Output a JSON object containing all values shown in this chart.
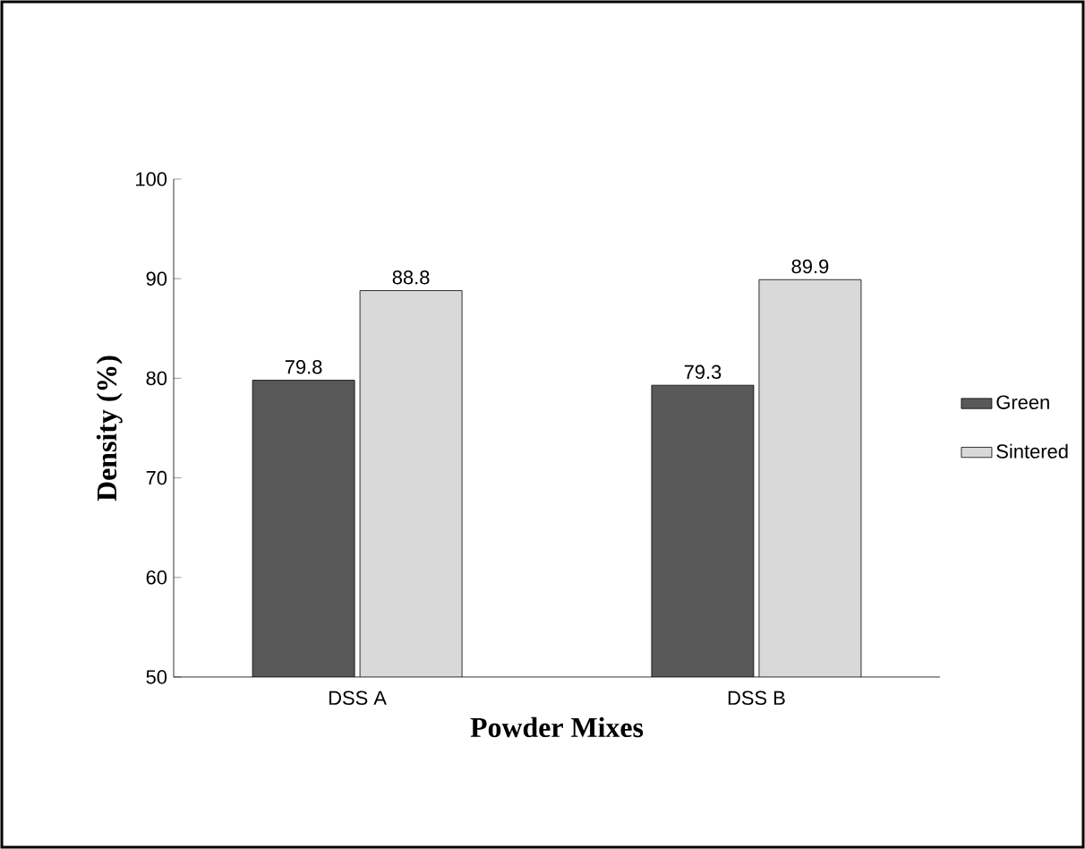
{
  "chart_data": {
    "type": "bar",
    "xlabel": "Powder Mixes",
    "ylabel": "Density (%)",
    "categories": [
      "DSS A",
      "DSS B"
    ],
    "series": [
      {
        "name": "Green",
        "color": "#595959",
        "values": [
          79.8,
          79.3
        ]
      },
      {
        "name": "Sintered",
        "color": "#d9d9d9",
        "values": [
          88.8,
          89.9
        ]
      }
    ],
    "ylim": [
      50,
      100
    ],
    "yticks": [
      50,
      60,
      70,
      80,
      90,
      100
    ],
    "data_labels": true,
    "legend": "right",
    "grid": false
  }
}
